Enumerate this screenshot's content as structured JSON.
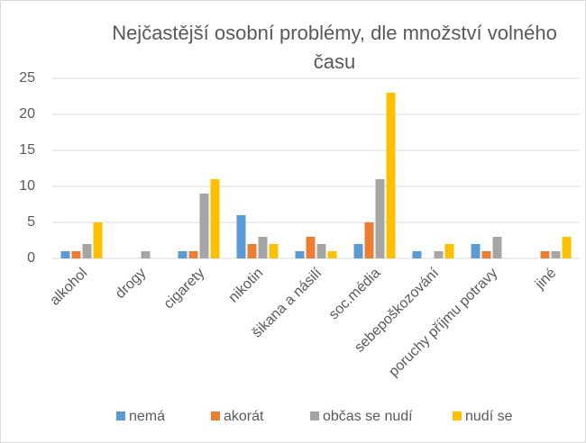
{
  "chart_data": {
    "type": "bar",
    "title": "Nejčastější osobní problémy, dle množství volného času",
    "categories": [
      "alkohol",
      "drogy",
      "cigarety",
      "nikotin",
      "šikana a násilí",
      "soc.média",
      "sebepoškozování",
      "poruchy příjmu potravy",
      "jiné"
    ],
    "series": [
      {
        "name": "nemá",
        "color": "#5b9bd5",
        "values": [
          1,
          0,
          1,
          6,
          1,
          2,
          1,
          2,
          0
        ]
      },
      {
        "name": "akorát",
        "color": "#ed7d31",
        "values": [
          1,
          0,
          1,
          2,
          3,
          5,
          0,
          1,
          1
        ]
      },
      {
        "name": "občas se nudí",
        "color": "#a5a5a5",
        "values": [
          2,
          1,
          9,
          3,
          2,
          11,
          1,
          3,
          1
        ]
      },
      {
        "name": "nudí se",
        "color": "#ffc000",
        "values": [
          5,
          0,
          11,
          2,
          1,
          23,
          2,
          0,
          3
        ]
      }
    ],
    "ylim": [
      0,
      25
    ],
    "yticks": [
      0,
      5,
      10,
      15,
      20,
      25
    ],
    "grid": true,
    "legend": "bottom"
  }
}
